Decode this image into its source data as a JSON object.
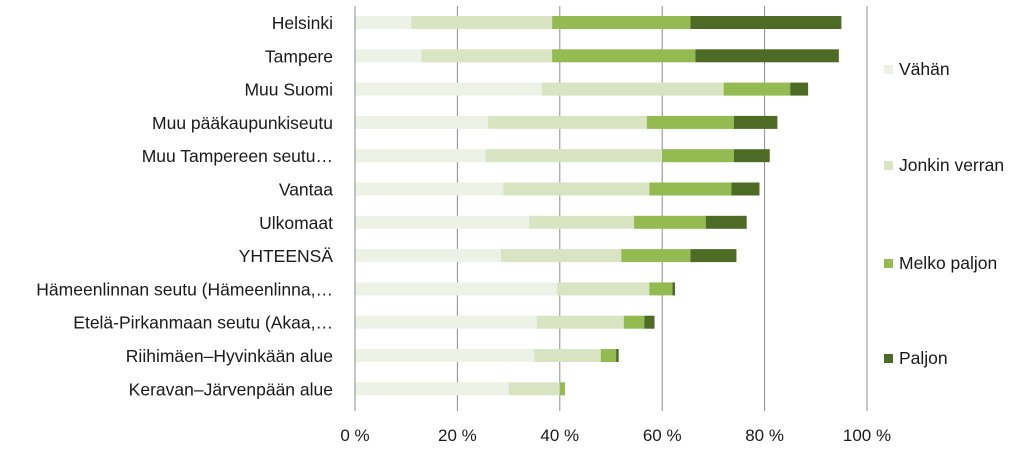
{
  "chart_data": {
    "type": "bar",
    "orientation": "horizontal",
    "stacked": true,
    "title": "",
    "xlabel": "",
    "ylabel": "",
    "xlim": [
      0,
      100
    ],
    "x_ticks": [
      "0 %",
      "20 %",
      "40 %",
      "60 %",
      "80 %",
      "100 %"
    ],
    "grid": true,
    "legend_position": "right",
    "categories": [
      "Helsinki",
      "Tampere",
      "Muu Suomi",
      "Muu pääkaupunkiseutu",
      "Muu Tampereen seutu…",
      "Vantaa",
      "Ulkomaat",
      "YHTEENSÄ",
      "Hämeenlinnan seutu (Hämeenlinna,…",
      "Etelä-Pirkanmaan seutu (Akaa,…",
      "Riihimäen–Hyvinkään alue",
      "Keravan–Järvenpään alue"
    ],
    "series": [
      {
        "name": "Vähän",
        "color": "#eef2e6",
        "values": [
          11,
          13,
          36.5,
          26,
          25.5,
          29,
          34,
          28.5,
          39.5,
          35.5,
          35,
          30
        ]
      },
      {
        "name": "Jonkin verran",
        "color": "#d8e4c2",
        "values": [
          27.5,
          25.5,
          35.5,
          31,
          34.5,
          28.5,
          20.5,
          23.5,
          18,
          17,
          13,
          10
        ]
      },
      {
        "name": "Melko paljon",
        "color": "#93bb51",
        "values": [
          27,
          28,
          13,
          17,
          14,
          16,
          14,
          13.5,
          4.5,
          4,
          3,
          1
        ]
      },
      {
        "name": "Paljon",
        "color": "#4e6b26",
        "values": [
          29.5,
          28,
          3.5,
          8.5,
          7,
          5.5,
          8,
          9,
          0.5,
          2,
          0.5,
          0
        ]
      }
    ]
  }
}
